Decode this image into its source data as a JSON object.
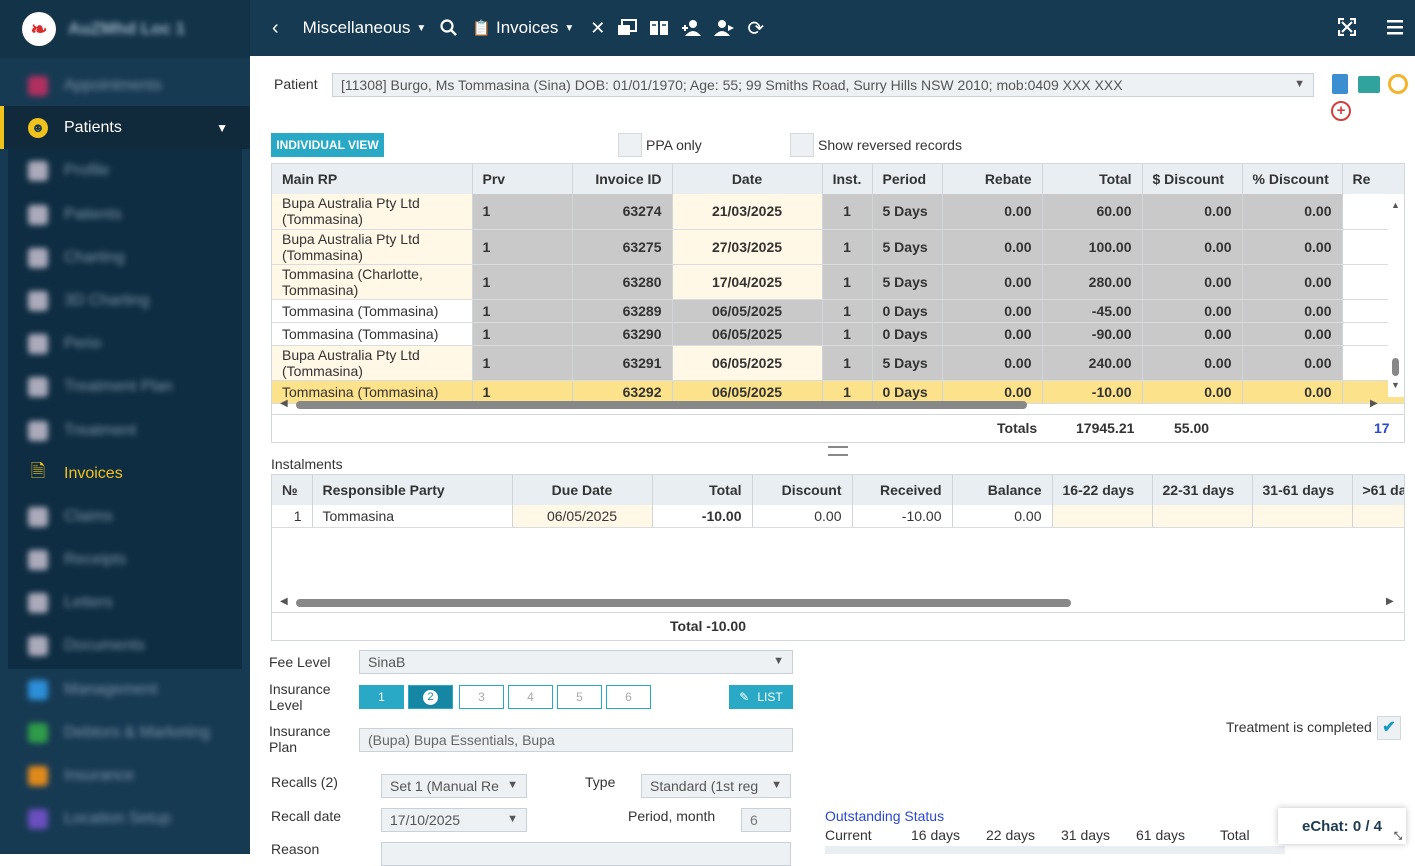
{
  "sidebar": {
    "practice": "AuZMhd Loc 1",
    "items": [
      {
        "label": "Appointments",
        "icon": "calendar-icon",
        "color": "#b03060"
      },
      {
        "label": "Patients",
        "icon": "smiley-icon",
        "color": "#f1c21b"
      },
      {
        "label": "Profile",
        "icon": "profile-icon",
        "color": "#aab"
      },
      {
        "label": "Patients",
        "icon": "person-icon",
        "color": "#aab"
      },
      {
        "label": "Charting",
        "icon": "tooth-icon",
        "color": "#aab"
      },
      {
        "label": "3D Charting",
        "icon": "tooth3d-icon",
        "color": "#aab"
      },
      {
        "label": "Perio",
        "icon": "perio-icon",
        "color": "#aab"
      },
      {
        "label": "Treatment Plan",
        "icon": "plan-icon",
        "color": "#aab"
      },
      {
        "label": "Treatment",
        "icon": "treatment-icon",
        "color": "#aab"
      },
      {
        "label": "Invoices",
        "icon": "invoice-icon",
        "color": "#f1c21b"
      },
      {
        "label": "Claims",
        "icon": "dollar-icon",
        "color": "#aab"
      },
      {
        "label": "Receipts",
        "icon": "receipt-icon",
        "color": "#aab"
      },
      {
        "label": "Letters",
        "icon": "letter-icon",
        "color": "#aab"
      },
      {
        "label": "Documents",
        "icon": "folder-icon",
        "color": "#aab"
      },
      {
        "label": "Management",
        "icon": "management-icon",
        "color": "#2d8ed8"
      },
      {
        "label": "Debtors & Marketing",
        "icon": "marketing-icon",
        "color": "#2e9b4a"
      },
      {
        "label": "Insurance",
        "icon": "insurance-icon",
        "color": "#e08a1c"
      },
      {
        "label": "Location Setup",
        "icon": "setup-icon",
        "color": "#6a4fbf"
      }
    ]
  },
  "topbar": {
    "module": "Miscellaneous",
    "section": "Invoices"
  },
  "patient": {
    "label": "Patient",
    "value": "[11308] Burgo, Ms Tommasina (Sina) DOB: 01/01/1970; Age: 55; 99 Smiths Road, Surry Hills NSW 2010; mob:0409 XXX XXX"
  },
  "filters": {
    "view_button": "INDIVIDUAL VIEW",
    "ppa_only": "PPA only",
    "show_reversed": "Show reversed records"
  },
  "invoices": {
    "columns": [
      "Main RP",
      "Prv",
      "Invoice ID",
      "Date",
      "Inst.",
      "Period",
      "Rebate",
      "Total",
      "$ Discount",
      "% Discount",
      "Re"
    ],
    "rows": [
      {
        "rp": "Bupa Australia Pty Ltd (Tommasina)",
        "prv": "1",
        "id": "63274",
        "date": "21/03/2025",
        "inst": "1",
        "period": "5 Days",
        "rebate": "0.00",
        "total": "60.00",
        "disc": "0.00",
        "pdisc": "0.00",
        "cream": true
      },
      {
        "rp": "Bupa Australia Pty Ltd (Tommasina)",
        "prv": "1",
        "id": "63275",
        "date": "27/03/2025",
        "inst": "1",
        "period": "5 Days",
        "rebate": "0.00",
        "total": "100.00",
        "disc": "0.00",
        "pdisc": "0.00",
        "cream": true
      },
      {
        "rp": "Tommasina (Charlotte, Tommasina)",
        "prv": "1",
        "id": "63280",
        "date": "17/04/2025",
        "inst": "1",
        "period": "5 Days",
        "rebate": "0.00",
        "total": "280.00",
        "disc": "0.00",
        "pdisc": "0.00",
        "cream": true
      },
      {
        "rp": "Tommasina (Tommasina)",
        "prv": "1",
        "id": "63289",
        "date": "06/05/2025",
        "inst": "1",
        "period": "0 Days",
        "rebate": "0.00",
        "total": "-45.00",
        "disc": "0.00",
        "pdisc": "0.00",
        "cream": false
      },
      {
        "rp": "Tommasina (Tommasina)",
        "prv": "1",
        "id": "63290",
        "date": "06/05/2025",
        "inst": "1",
        "period": "0 Days",
        "rebate": "0.00",
        "total": "-90.00",
        "disc": "0.00",
        "pdisc": "0.00",
        "cream": false
      },
      {
        "rp": "Bupa Australia Pty Ltd (Tommasina)",
        "prv": "1",
        "id": "63291",
        "date": "06/05/2025",
        "inst": "1",
        "period": "5 Days",
        "rebate": "0.00",
        "total": "240.00",
        "disc": "0.00",
        "pdisc": "0.00",
        "cream": true
      },
      {
        "rp": "Tommasina (Tommasina)",
        "prv": "1",
        "id": "63292",
        "date": "06/05/2025",
        "inst": "1",
        "period": "0 Days",
        "rebate": "0.00",
        "total": "-10.00",
        "disc": "0.00",
        "pdisc": "0.00",
        "cream": false,
        "selected": true
      }
    ],
    "totals_label": "Totals",
    "total": "17945.21",
    "disc_total": "55.00",
    "re_total": "17"
  },
  "instalments": {
    "title": "Instalments",
    "columns": [
      "№",
      "Responsible Party",
      "Due Date",
      "Total",
      "Discount",
      "Received",
      "Balance",
      "16-22 days",
      "22-31 days",
      "31-61 days",
      ">61 da"
    ],
    "rows": [
      {
        "no": "1",
        "party": "Tommasina",
        "due": "06/05/2025",
        "total": "-10.00",
        "discount": "0.00",
        "received": "-10.00",
        "balance": "0.00"
      }
    ],
    "total_label": "Total -10.00"
  },
  "form": {
    "fee_level_label": "Fee Level",
    "fee_level": "SinaB",
    "insurance_level_label": "Insurance Level",
    "levels": [
      "1",
      "2",
      "3",
      "4",
      "5",
      "6"
    ],
    "list_button": "LIST",
    "insurance_plan_label": "Insurance Plan",
    "insurance_plan": "(Bupa) Bupa Essentials, Bupa",
    "treatment_completed": "Treatment is completed",
    "recalls_label": "Recalls (2)",
    "recall_set": "Set 1 (Manual Re",
    "type_label": "Type",
    "type_value": "Standard (1st reg",
    "recall_date_label": "Recall date",
    "recall_date": "17/10/2025",
    "period_label": "Period, month",
    "period_value": "6",
    "reason_label": "Reason"
  },
  "outstanding": {
    "title": "Outstanding Status",
    "columns": [
      "Current",
      "16 days",
      "22 days",
      "31 days",
      "61 days",
      "Total"
    ]
  },
  "echat": {
    "label": "eChat: 0 / 4"
  }
}
